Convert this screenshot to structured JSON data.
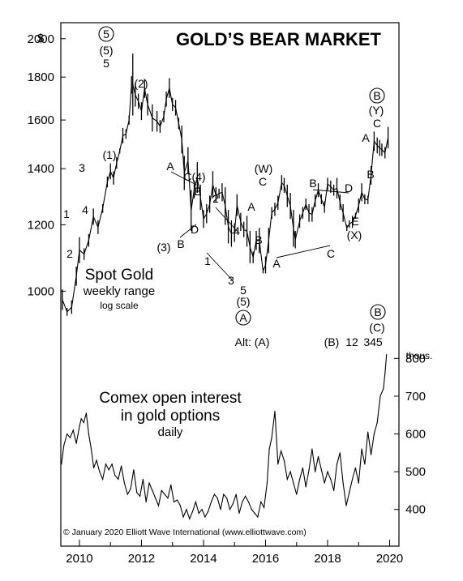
{
  "chart_data": {
    "type": "line",
    "title": "GOLD’S BEAR MARKET",
    "x_ticks": [
      "2010",
      "2012",
      "2014",
      "2016",
      "2018",
      "2020"
    ],
    "x_range": [
      2009.4,
      2020.3
    ],
    "top_panel": {
      "name": "Spot Gold",
      "subtitle": "weekly range",
      "scale_note": "log scale",
      "y_unit": "$",
      "y_scale": "log",
      "y_ticks": [
        1000,
        1200,
        1400,
        1600,
        1800,
        2000
      ],
      "ylim": [
        870,
        2090
      ],
      "x": [
        2009.45,
        2009.6,
        2009.75,
        2009.9,
        2010.0,
        2010.15,
        2010.3,
        2010.45,
        2010.6,
        2010.75,
        2010.9,
        2011.0,
        2011.1,
        2011.2,
        2011.3,
        2011.4,
        2011.5,
        2011.6,
        2011.68,
        2011.72,
        2011.8,
        2011.9,
        2012.0,
        2012.1,
        2012.2,
        2012.35,
        2012.5,
        2012.6,
        2012.72,
        2012.8,
        2012.9,
        2013.0,
        2013.1,
        2013.2,
        2013.3,
        2013.38,
        2013.5,
        2013.6,
        2013.7,
        2013.8,
        2013.9,
        2014.0,
        2014.1,
        2014.2,
        2014.3,
        2014.4,
        2014.5,
        2014.6,
        2014.7,
        2014.8,
        2014.9,
        2015.0,
        2015.08,
        2015.2,
        2015.3,
        2015.4,
        2015.5,
        2015.6,
        2015.7,
        2015.8,
        2015.92,
        2016.0,
        2016.1,
        2016.2,
        2016.3,
        2016.4,
        2016.52,
        2016.6,
        2016.7,
        2016.8,
        2016.9,
        2016.96,
        2017.1,
        2017.2,
        2017.3,
        2017.4,
        2017.5,
        2017.6,
        2017.7,
        2017.8,
        2017.9,
        2018.0,
        2018.1,
        2018.2,
        2018.3,
        2018.4,
        2018.5,
        2018.62,
        2018.7,
        2018.8,
        2018.9,
        2019.0,
        2019.1,
        2019.2,
        2019.3,
        2019.4,
        2019.5,
        2019.6,
        2019.68,
        2019.75,
        2019.85,
        2019.95
      ],
      "high": [
        1005,
        955,
        975,
        1070,
        1160,
        1125,
        1170,
        1255,
        1215,
        1270,
        1370,
        1420,
        1390,
        1445,
        1480,
        1565,
        1560,
        1620,
        1805,
        1920,
        1770,
        1720,
        1680,
        1790,
        1720,
        1670,
        1640,
        1600,
        1640,
        1730,
        1795,
        1700,
        1690,
        1610,
        1575,
        1450,
        1485,
        1320,
        1355,
        1425,
        1340,
        1250,
        1270,
        1300,
        1390,
        1330,
        1325,
        1345,
        1330,
        1250,
        1215,
        1205,
        1305,
        1240,
        1210,
        1230,
        1180,
        1115,
        1180,
        1190,
        1065,
        1100,
        1190,
        1260,
        1275,
        1300,
        1375,
        1365,
        1340,
        1310,
        1250,
        1180,
        1235,
        1260,
        1290,
        1270,
        1260,
        1305,
        1345,
        1305,
        1280,
        1365,
        1355,
        1340,
        1365,
        1305,
        1270,
        1200,
        1215,
        1230,
        1240,
        1290,
        1345,
        1305,
        1300,
        1410,
        1550,
        1525,
        1515,
        1500,
        1485,
        1570
      ],
      "low": [
        950,
        935,
        940,
        1015,
        1080,
        1090,
        1130,
        1200,
        1170,
        1240,
        1330,
        1360,
        1340,
        1400,
        1460,
        1500,
        1520,
        1580,
        1720,
        1620,
        1660,
        1650,
        1600,
        1700,
        1620,
        1550,
        1550,
        1545,
        1590,
        1660,
        1700,
        1640,
        1620,
        1560,
        1460,
        1320,
        1380,
        1180,
        1290,
        1310,
        1250,
        1190,
        1205,
        1240,
        1290,
        1275,
        1290,
        1280,
        1200,
        1140,
        1130,
        1145,
        1230,
        1180,
        1160,
        1130,
        1080,
        1080,
        1120,
        1110,
        1050,
        1050,
        1110,
        1220,
        1230,
        1250,
        1320,
        1310,
        1260,
        1220,
        1130,
        1125,
        1190,
        1220,
        1250,
        1210,
        1210,
        1260,
        1295,
        1270,
        1240,
        1320,
        1310,
        1300,
        1290,
        1250,
        1210,
        1180,
        1190,
        1190,
        1220,
        1240,
        1280,
        1270,
        1270,
        1340,
        1470,
        1460,
        1450,
        1450,
        1440,
        1480
      ]
    },
    "bottom_panel": {
      "name": "Comex open interest",
      "name_line2": "in gold options",
      "frequency": "daily",
      "y_unit": "thous.",
      "y_ticks": [
        400,
        500,
        600,
        700,
        800
      ],
      "ylim": [
        365,
        805
      ],
      "x": [
        2009.42,
        2009.5,
        2009.6,
        2009.7,
        2009.8,
        2009.9,
        2010.0,
        2010.06,
        2010.14,
        2010.22,
        2010.3,
        2010.38,
        2010.46,
        2010.55,
        2010.65,
        2010.75,
        2010.85,
        2010.95,
        2011.05,
        2011.15,
        2011.25,
        2011.35,
        2011.45,
        2011.55,
        2011.65,
        2011.75,
        2011.85,
        2011.95,
        2012.05,
        2012.15,
        2012.25,
        2012.35,
        2012.45,
        2012.55,
        2012.65,
        2012.75,
        2012.85,
        2012.95,
        2013.05,
        2013.15,
        2013.25,
        2013.35,
        2013.45,
        2013.55,
        2013.65,
        2013.75,
        2013.85,
        2013.95,
        2014.05,
        2014.15,
        2014.25,
        2014.35,
        2014.45,
        2014.55,
        2014.65,
        2014.75,
        2014.85,
        2014.95,
        2015.05,
        2015.15,
        2015.25,
        2015.35,
        2015.45,
        2015.55,
        2015.65,
        2015.75,
        2015.85,
        2015.95,
        2016.05,
        2016.12,
        2016.2,
        2016.3,
        2016.4,
        2016.5,
        2016.6,
        2016.7,
        2016.8,
        2016.9,
        2017.0,
        2017.1,
        2017.2,
        2017.3,
        2017.4,
        2017.5,
        2017.6,
        2017.7,
        2017.8,
        2017.9,
        2018.0,
        2018.1,
        2018.2,
        2018.3,
        2018.4,
        2018.5,
        2018.6,
        2018.7,
        2018.8,
        2018.9,
        2019.0,
        2019.1,
        2019.2,
        2019.3,
        2019.4,
        2019.5,
        2019.6,
        2019.7,
        2019.8,
        2019.85,
        2019.9
      ],
      "values": [
        520,
        570,
        600,
        590,
        610,
        575,
        620,
        640,
        630,
        655,
        600,
        560,
        510,
        530,
        500,
        480,
        520,
        505,
        520,
        490,
        480,
        515,
        470,
        440,
        455,
        505,
        445,
        435,
        480,
        420,
        470,
        450,
        430,
        410,
        450,
        440,
        430,
        465,
        420,
        425,
        410,
        380,
        400,
        375,
        395,
        420,
        390,
        400,
        380,
        395,
        420,
        440,
        430,
        400,
        440,
        430,
        400,
        415,
        440,
        390,
        420,
        435,
        420,
        400,
        390,
        380,
        420,
        405,
        470,
        560,
        590,
        660,
        520,
        555,
        530,
        480,
        500,
        470,
        440,
        480,
        510,
        460,
        505,
        560,
        500,
        540,
        505,
        470,
        500,
        480,
        450,
        520,
        550,
        470,
        410,
        445,
        480,
        510,
        470,
        560,
        520,
        605,
        545,
        600,
        630,
        700,
        720,
        760,
        810
      ]
    },
    "annotations": {
      "p5_circ": "5",
      "p5_paren": "(5)",
      "p5": "5",
      "p2_paren": "(2)",
      "p1_paren": "(1)",
      "w1": "1",
      "w2": "2",
      "w3": "3",
      "w4": "4",
      "a": "A",
      "c4": "C(4)",
      "e": "E",
      "d": "D",
      "b": "B",
      "p3_paren": "(3)",
      "n2": "2",
      "n4": "4",
      "n1": "1",
      "n3": "3",
      "n5": "5",
      "n5_paren": "(5)",
      "a_circ": "A",
      "w_paren": "(W)",
      "w_c": "C",
      "w_a": "A",
      "w_b": "B",
      "x_a": "A",
      "x_b": "B",
      "x_c": "C",
      "x_d": "D",
      "x_e": "E",
      "x_paren": "(X)",
      "y_a": "A",
      "y_b": "B",
      "y_c": "C",
      "y_paren": "(Y)",
      "b_circ": "B",
      "alt": "Alt: (A)",
      "alt_b": "(B)",
      "alt_12": "12",
      "alt_345": "345",
      "alt_c": "(C)",
      "alt_b_circ": "B"
    },
    "copyright": "© January 2020 Elliott Wave International (www.elliottwave.com)",
    "line_color": "#000000"
  }
}
